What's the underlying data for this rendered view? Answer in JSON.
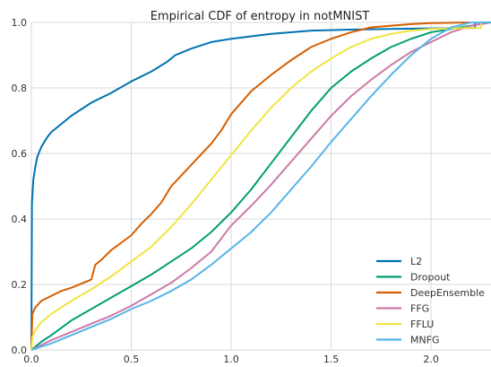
{
  "chart_data": {
    "type": "line",
    "title": "Empirical CDF of entropy in notMNIST",
    "xlabel": "",
    "ylabel": "",
    "xlim": [
      0,
      2.3
    ],
    "ylim": [
      0,
      1.0
    ],
    "xticks": [
      0.0,
      0.5,
      1.0,
      1.5,
      2.0
    ],
    "xtick_labels": [
      "0.0",
      "0.5",
      "1.0",
      "1.5",
      "2.0"
    ],
    "yticks": [
      0.0,
      0.2,
      0.4,
      0.6,
      0.8,
      1.0
    ],
    "ytick_labels": [
      "0.0",
      "0.2",
      "0.4",
      "0.6",
      "0.8",
      "1.0"
    ],
    "grid": true,
    "legend_position": "bottom-right",
    "series": [
      {
        "name": "L2",
        "color": "#0072b2",
        "x": [
          0,
          0.003,
          0.01,
          0.02,
          0.03,
          0.05,
          0.08,
          0.1,
          0.15,
          0.2,
          0.25,
          0.3,
          0.4,
          0.5,
          0.6,
          0.68,
          0.72,
          0.8,
          0.9,
          1.0,
          1.2,
          1.4,
          1.6,
          1.8,
          2.0,
          2.2,
          2.22,
          2.22,
          2.3
        ],
        "y": [
          0,
          0.45,
          0.52,
          0.56,
          0.59,
          0.62,
          0.65,
          0.665,
          0.69,
          0.715,
          0.735,
          0.755,
          0.785,
          0.82,
          0.85,
          0.88,
          0.9,
          0.92,
          0.94,
          0.95,
          0.965,
          0.975,
          0.978,
          0.98,
          0.982,
          0.983,
          0.983,
          1.0,
          1.0
        ]
      },
      {
        "name": "Dropout",
        "color": "#009e73",
        "x": [
          0,
          0.05,
          0.1,
          0.2,
          0.3,
          0.4,
          0.5,
          0.6,
          0.7,
          0.8,
          0.9,
          1.0,
          1.1,
          1.2,
          1.3,
          1.4,
          1.5,
          1.6,
          1.7,
          1.8,
          1.9,
          2.0,
          2.1,
          2.2,
          2.3
        ],
        "y": [
          0,
          0.025,
          0.045,
          0.09,
          0.125,
          0.16,
          0.195,
          0.23,
          0.27,
          0.31,
          0.36,
          0.42,
          0.49,
          0.57,
          0.65,
          0.73,
          0.8,
          0.85,
          0.89,
          0.925,
          0.95,
          0.97,
          0.98,
          0.99,
          1.0
        ]
      },
      {
        "name": "DeepEnsemble",
        "color": "#d55e00",
        "x": [
          0,
          0.005,
          0.02,
          0.05,
          0.1,
          0.15,
          0.2,
          0.3,
          0.32,
          0.35,
          0.4,
          0.5,
          0.55,
          0.6,
          0.65,
          0.7,
          0.8,
          0.9,
          0.95,
          1.0,
          1.05,
          1.1,
          1.2,
          1.3,
          1.4,
          1.5,
          1.6,
          1.7,
          1.8,
          1.9,
          2.0,
          2.1,
          2.2,
          2.3
        ],
        "y": [
          0,
          0.11,
          0.13,
          0.15,
          0.165,
          0.18,
          0.19,
          0.215,
          0.26,
          0.275,
          0.305,
          0.35,
          0.385,
          0.415,
          0.45,
          0.5,
          0.565,
          0.63,
          0.67,
          0.72,
          0.755,
          0.79,
          0.84,
          0.885,
          0.925,
          0.95,
          0.97,
          0.985,
          0.99,
          0.995,
          0.998,
          0.999,
          1.0,
          1.0
        ]
      },
      {
        "name": "FFG",
        "color": "#cc79a7",
        "x": [
          0,
          0.05,
          0.1,
          0.2,
          0.3,
          0.4,
          0.5,
          0.6,
          0.7,
          0.8,
          0.9,
          1.0,
          1.1,
          1.2,
          1.3,
          1.4,
          1.5,
          1.6,
          1.7,
          1.8,
          1.9,
          2.0,
          2.1,
          2.2,
          2.3
        ],
        "y": [
          0,
          0.015,
          0.03,
          0.055,
          0.08,
          0.105,
          0.135,
          0.17,
          0.205,
          0.25,
          0.3,
          0.38,
          0.44,
          0.505,
          0.575,
          0.645,
          0.715,
          0.775,
          0.825,
          0.87,
          0.91,
          0.94,
          0.97,
          0.99,
          1.0
        ]
      },
      {
        "name": "FFLU",
        "color": "#f0e442",
        "x": [
          0,
          0.005,
          0.02,
          0.05,
          0.1,
          0.2,
          0.3,
          0.4,
          0.5,
          0.6,
          0.7,
          0.8,
          0.9,
          1.0,
          1.1,
          1.2,
          1.3,
          1.4,
          1.5,
          1.6,
          1.7,
          1.8,
          1.9,
          2.0,
          2.1,
          2.2,
          2.25,
          2.25,
          2.3
        ],
        "y": [
          0,
          0.04,
          0.06,
          0.085,
          0.11,
          0.15,
          0.185,
          0.225,
          0.27,
          0.315,
          0.375,
          0.445,
          0.52,
          0.595,
          0.67,
          0.74,
          0.8,
          0.85,
          0.89,
          0.925,
          0.95,
          0.965,
          0.975,
          0.98,
          0.982,
          0.983,
          0.983,
          1.0,
          1.0
        ]
      },
      {
        "name": "MNFG",
        "color": "#56b4e9",
        "x": [
          0,
          0.05,
          0.1,
          0.2,
          0.3,
          0.4,
          0.5,
          0.6,
          0.7,
          0.8,
          0.9,
          1.0,
          1.1,
          1.2,
          1.3,
          1.4,
          1.5,
          1.6,
          1.7,
          1.8,
          1.9,
          2.0,
          2.1,
          2.2,
          2.3
        ],
        "y": [
          0,
          0.01,
          0.02,
          0.045,
          0.07,
          0.095,
          0.125,
          0.15,
          0.18,
          0.215,
          0.26,
          0.31,
          0.36,
          0.42,
          0.49,
          0.56,
          0.635,
          0.705,
          0.775,
          0.84,
          0.9,
          0.95,
          0.985,
          1.0,
          1.0
        ]
      }
    ]
  }
}
